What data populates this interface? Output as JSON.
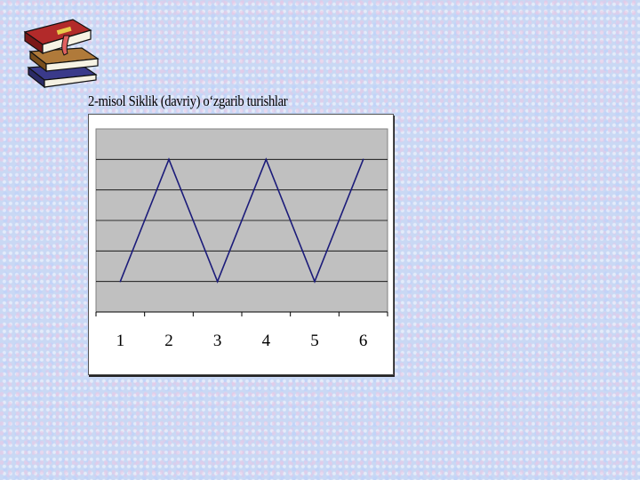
{
  "slide": {
    "title": "2-misol Siklik (davriy) o‘zgarib turishlar"
  },
  "icons": {
    "books": "books-stack-icon"
  },
  "colors": {
    "line": "#1c1c7a",
    "plot_background": "#c0c0c0",
    "gridline": "#000000"
  },
  "chart_data": {
    "type": "line",
    "title": "2-misol Siklik (davriy) o‘zgarib turishlar",
    "categories": [
      "1",
      "2",
      "3",
      "4",
      "5",
      "6"
    ],
    "series": [
      {
        "name": "",
        "values": [
          1,
          5,
          1,
          5,
          1,
          5
        ]
      }
    ],
    "ylim": [
      0,
      6
    ],
    "grid": true,
    "xlabel": "",
    "ylabel": ""
  }
}
